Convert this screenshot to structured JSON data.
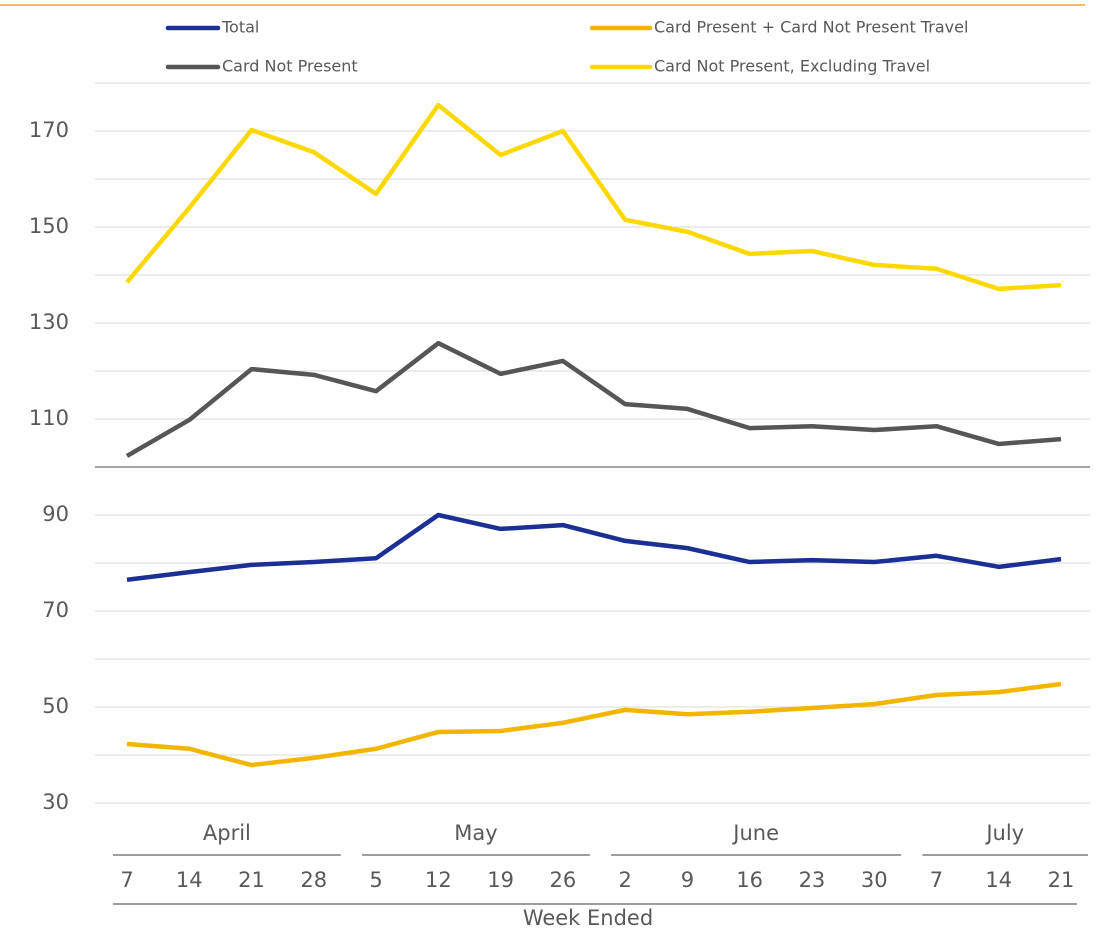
{
  "chart_data": {
    "type": "line",
    "x_axis_label": "Week Ended",
    "categories": [
      "7",
      "14",
      "21",
      "28",
      "5",
      "12",
      "19",
      "26",
      "2",
      "9",
      "16",
      "23",
      "30",
      "7",
      "14",
      "21"
    ],
    "category_groups": [
      {
        "label": "April",
        "size": 4
      },
      {
        "label": "May",
        "size": 4
      },
      {
        "label": "June",
        "size": 5
      },
      {
        "label": "July",
        "size": 3
      }
    ],
    "series": [
      {
        "name": "Total",
        "color": "#1b2f94",
        "values": [
          76.5,
          78.1,
          79.6,
          80.2,
          81.0,
          90.0,
          87.1,
          87.9,
          84.6,
          83.1,
          80.2,
          80.6,
          80.2,
          81.5,
          79.2,
          80.8
        ]
      },
      {
        "name": "Card Present + Card Not Present Travel",
        "color": "#f2b600",
        "values": [
          42.3,
          41.3,
          37.9,
          39.4,
          41.3,
          44.8,
          45.0,
          46.7,
          49.4,
          48.5,
          49.0,
          49.8,
          50.6,
          52.5,
          53.1,
          54.8
        ]
      },
      {
        "name": "Card Not Present",
        "color": "#565656",
        "values": [
          102.3,
          109.8,
          120.4,
          119.2,
          115.8,
          125.8,
          119.4,
          122.1,
          113.1,
          112.1,
          108.1,
          108.5,
          107.7,
          108.5,
          104.8,
          105.8
        ]
      },
      {
        "name": "Card Not Present, Excluding Travel",
        "color": "#fad800",
        "values": [
          138.5,
          154.0,
          170.2,
          165.6,
          156.9,
          175.4,
          165.0,
          170.0,
          151.5,
          149.0,
          144.4,
          145.0,
          142.1,
          141.3,
          137.1,
          137.9
        ]
      }
    ],
    "ylim": [
      30,
      180
    ],
    "yticks": [
      30,
      50,
      70,
      90,
      110,
      130,
      150,
      170
    ],
    "y_minor_gridlines": [
      40,
      60,
      80,
      100,
      120,
      140,
      160,
      180
    ],
    "reference_line": 100,
    "grid": true,
    "legend": "top"
  }
}
